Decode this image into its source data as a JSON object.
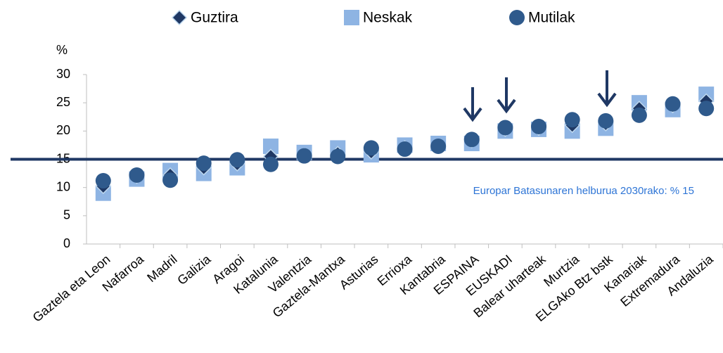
{
  "chart_data": {
    "type": "scatter",
    "y_label": "%",
    "categories": [
      "Gaztela eta Leon",
      "Nafarroa",
      "Madril",
      "Galizia",
      "Aragoi",
      "Katalunia",
      "Valentzia",
      "Gaztela-Mantxa",
      "Asturias",
      "Errioxa",
      "Kantabria",
      "ESPAINA",
      "EUSKADI",
      "Balear uharteak",
      "Murtzia",
      "ELGAko Btz bstk",
      "Kanariak",
      "Extremadura",
      "Andaluzia"
    ],
    "series": [
      {
        "name": "Guztira",
        "marker": "diamond",
        "color": "#1f3864",
        "values": [
          10.2,
          12,
          12.2,
          13.5,
          14.2,
          15.5,
          15.7,
          16,
          16.3,
          17,
          17.3,
          18.3,
          20.3,
          20.5,
          21,
          21.3,
          24,
          24.5,
          25.3
        ]
      },
      {
        "name": "Neskak",
        "marker": "square",
        "color": "#8eb4e3",
        "values": [
          9,
          11.5,
          13,
          12.5,
          13.5,
          17.3,
          16.2,
          17,
          15.8,
          17.5,
          17.8,
          17.8,
          20,
          20.3,
          20,
          20.5,
          25,
          23.8,
          26.5
        ]
      },
      {
        "name": "Mutilak",
        "marker": "circle",
        "color": "#2f5a8c",
        "values": [
          11.2,
          12.2,
          11.3,
          14.3,
          14.9,
          14.1,
          15.6,
          15.5,
          17,
          16.8,
          17.3,
          18.5,
          20.6,
          20.8,
          22,
          21.8,
          22.8,
          24.8,
          24
        ]
      }
    ],
    "ylim": [
      0,
      30
    ],
    "yticks": [
      0,
      5,
      10,
      15,
      20,
      25,
      30
    ],
    "target": {
      "value": 15,
      "label": "Europar Batasunaren helburua 2030rako: % 15",
      "color": "#1f3864"
    }
  }
}
